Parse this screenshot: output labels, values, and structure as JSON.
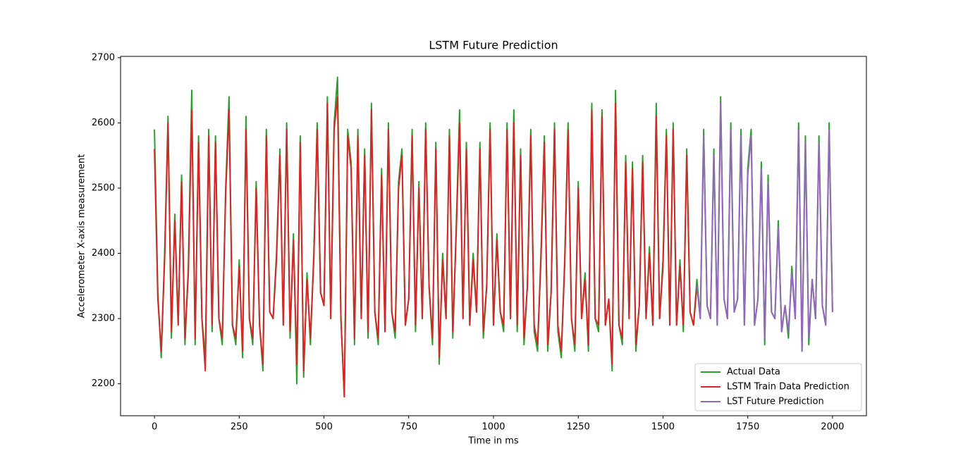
{
  "chart_data": {
    "type": "line",
    "title": "LSTM Future Prediction",
    "x_label": "Time in ms",
    "y_label": "Accelerometer X-axis measurement",
    "xlim": [
      -100,
      2100
    ],
    "ylim": [
      2151,
      2702
    ],
    "xticks": [
      0,
      250,
      500,
      750,
      1000,
      1250,
      1500,
      1750,
      2000
    ],
    "yticks": [
      2200,
      2300,
      2400,
      2500,
      2600,
      2700
    ],
    "legend": "lower right",
    "grid": false,
    "x": [
      0,
      10,
      20,
      30,
      40,
      50,
      60,
      70,
      80,
      90,
      100,
      110,
      120,
      130,
      140,
      150,
      160,
      170,
      180,
      190,
      200,
      210,
      220,
      230,
      240,
      250,
      260,
      270,
      280,
      290,
      300,
      310,
      320,
      330,
      340,
      350,
      360,
      370,
      380,
      390,
      400,
      410,
      420,
      430,
      440,
      450,
      460,
      470,
      480,
      490,
      500,
      510,
      520,
      530,
      540,
      550,
      560,
      570,
      580,
      590,
      600,
      610,
      620,
      630,
      640,
      650,
      660,
      670,
      680,
      690,
      700,
      710,
      720,
      730,
      740,
      750,
      760,
      770,
      780,
      790,
      800,
      810,
      820,
      830,
      840,
      850,
      860,
      870,
      880,
      890,
      900,
      910,
      920,
      930,
      940,
      950,
      960,
      970,
      980,
      990,
      1000,
      1010,
      1020,
      1030,
      1040,
      1050,
      1060,
      1070,
      1080,
      1090,
      1100,
      1110,
      1120,
      1130,
      1140,
      1150,
      1160,
      1170,
      1180,
      1190,
      1200,
      1210,
      1220,
      1230,
      1240,
      1250,
      1260,
      1270,
      1280,
      1290,
      1300,
      1310,
      1320,
      1330,
      1340,
      1350,
      1360,
      1370,
      1380,
      1390,
      1400,
      1410,
      1420,
      1430,
      1440,
      1450,
      1460,
      1470,
      1480,
      1490,
      1500,
      1510,
      1520,
      1530,
      1540,
      1550,
      1560,
      1570,
      1580,
      1590,
      1600,
      1610,
      1620,
      1630,
      1640,
      1650,
      1660,
      1670,
      1680,
      1690,
      1700,
      1710,
      1720,
      1730,
      1740,
      1750,
      1760,
      1770,
      1780,
      1790,
      1800,
      1810,
      1820,
      1830,
      1840,
      1850,
      1860,
      1870,
      1880,
      1890,
      1900,
      1910,
      1920,
      1930,
      1940,
      1950,
      1960,
      1970,
      1980,
      1990,
      2000
    ],
    "series": [
      {
        "name": "Actual Data",
        "color": "#2ca02c",
        "values": [
          2590,
          2340,
          2240,
          2400,
          2610,
          2270,
          2460,
          2290,
          2520,
          2260,
          2380,
          2650,
          2260,
          2580,
          2300,
          2240,
          2590,
          2280,
          2580,
          2300,
          2260,
          2500,
          2640,
          2290,
          2260,
          2390,
          2240,
          2610,
          2300,
          2260,
          2510,
          2290,
          2220,
          2590,
          2310,
          2300,
          2400,
          2560,
          2290,
          2600,
          2270,
          2430,
          2200,
          2580,
          2210,
          2370,
          2260,
          2400,
          2600,
          2340,
          2320,
          2640,
          2300,
          2600,
          2670,
          2300,
          2180,
          2590,
          2540,
          2260,
          2590,
          2300,
          2560,
          2270,
          2630,
          2310,
          2260,
          2530,
          2280,
          2600,
          2310,
          2270,
          2510,
          2560,
          2290,
          2330,
          2590,
          2280,
          2510,
          2300,
          2600,
          2350,
          2260,
          2570,
          2230,
          2400,
          2300,
          2590,
          2270,
          2440,
          2620,
          2300,
          2570,
          2290,
          2400,
          2310,
          2570,
          2270,
          2350,
          2600,
          2290,
          2430,
          2310,
          2280,
          2600,
          2300,
          2620,
          2280,
          2560,
          2260,
          2350,
          2590,
          2280,
          2250,
          2400,
          2580,
          2250,
          2340,
          2600,
          2280,
          2240,
          2390,
          2600,
          2300,
          2250,
          2510,
          2300,
          2370,
          2250,
          2630,
          2300,
          2280,
          2620,
          2290,
          2330,
          2220,
          2650,
          2290,
          2260,
          2550,
          2300,
          2540,
          2250,
          2320,
          2550,
          2300,
          2410,
          2290,
          2630,
          2300,
          2390,
          2590,
          2290,
          2600,
          2290,
          2390,
          2280,
          2560,
          2310,
          2290,
          2360,
          2300,
          2590,
          2320,
          2300,
          2560,
          2290,
          2640,
          2330,
          2300,
          2600,
          2310,
          2330,
          2590,
          2290,
          2530,
          2590,
          2290,
          2330,
          2540,
          2260,
          2520,
          2310,
          2300,
          2450,
          2280,
          2320,
          2270,
          2380,
          2300,
          2600,
          2250,
          2580,
          2260,
          2360,
          2300,
          2580,
          2320,
          2290,
          2600,
          2310
        ]
      },
      {
        "name": "LSTM Train Data Prediction",
        "color": "#d62728",
        "values": [
          2560,
          2330,
          2250,
          2390,
          2600,
          2280,
          2450,
          2290,
          2510,
          2270,
          2370,
          2620,
          2270,
          2570,
          2300,
          2220,
          2580,
          2290,
          2570,
          2300,
          2270,
          2490,
          2620,
          2290,
          2270,
          2380,
          2250,
          2590,
          2300,
          2270,
          2500,
          2290,
          2230,
          2580,
          2310,
          2300,
          2390,
          2550,
          2290,
          2590,
          2280,
          2420,
          2230,
          2570,
          2220,
          2360,
          2270,
          2390,
          2590,
          2340,
          2320,
          2630,
          2300,
          2590,
          2640,
          2300,
          2180,
          2580,
          2530,
          2270,
          2580,
          2300,
          2550,
          2280,
          2620,
          2310,
          2270,
          2520,
          2280,
          2590,
          2310,
          2280,
          2500,
          2550,
          2290,
          2330,
          2580,
          2290,
          2500,
          2300,
          2590,
          2350,
          2270,
          2560,
          2240,
          2390,
          2300,
          2580,
          2280,
          2430,
          2600,
          2300,
          2560,
          2290,
          2390,
          2310,
          2560,
          2280,
          2350,
          2590,
          2290,
          2420,
          2310,
          2290,
          2590,
          2300,
          2600,
          2290,
          2550,
          2270,
          2350,
          2580,
          2290,
          2260,
          2390,
          2570,
          2260,
          2340,
          2590,
          2290,
          2250,
          2380,
          2590,
          2300,
          2260,
          2500,
          2300,
          2360,
          2260,
          2620,
          2300,
          2290,
          2610,
          2290,
          2330,
          2230,
          2630,
          2290,
          2270,
          2540,
          2300,
          2530,
          2260,
          2320,
          2540,
          2300,
          2400,
          2290,
          2610,
          2300,
          2380,
          2580,
          2290,
          2590,
          2290,
          2380,
          2290,
          2550,
          2310,
          2290,
          2350,
          null,
          null,
          null,
          null,
          null,
          null,
          null,
          null,
          null,
          null,
          null,
          null,
          null,
          null,
          null,
          null,
          null,
          null,
          null,
          null,
          null,
          null,
          null,
          null,
          null,
          null,
          null,
          null,
          null,
          null,
          null,
          null,
          null,
          null,
          null,
          null,
          null,
          null,
          null,
          null
        ]
      },
      {
        "name": "LST Future Prediction",
        "color": "#9467bd",
        "values": [
          null,
          null,
          null,
          null,
          null,
          null,
          null,
          null,
          null,
          null,
          null,
          null,
          null,
          null,
          null,
          null,
          null,
          null,
          null,
          null,
          null,
          null,
          null,
          null,
          null,
          null,
          null,
          null,
          null,
          null,
          null,
          null,
          null,
          null,
          null,
          null,
          null,
          null,
          null,
          null,
          null,
          null,
          null,
          null,
          null,
          null,
          null,
          null,
          null,
          null,
          null,
          null,
          null,
          null,
          null,
          null,
          null,
          null,
          null,
          null,
          null,
          null,
          null,
          null,
          null,
          null,
          null,
          null,
          null,
          null,
          null,
          null,
          null,
          null,
          null,
          null,
          null,
          null,
          null,
          null,
          null,
          null,
          null,
          null,
          null,
          null,
          null,
          null,
          null,
          null,
          null,
          null,
          null,
          null,
          null,
          null,
          null,
          null,
          null,
          null,
          null,
          null,
          null,
          null,
          null,
          null,
          null,
          null,
          null,
          null,
          null,
          null,
          null,
          null,
          null,
          null,
          null,
          null,
          null,
          null,
          null,
          null,
          null,
          null,
          null,
          null,
          null,
          null,
          null,
          null,
          null,
          null,
          null,
          null,
          null,
          null,
          null,
          null,
          null,
          null,
          null,
          null,
          null,
          null,
          null,
          null,
          null,
          null,
          null,
          null,
          null,
          null,
          null,
          null,
          null,
          null,
          null,
          null,
          null,
          null,
          2350,
          2300,
          2580,
          2320,
          2300,
          2550,
          2290,
          2630,
          2330,
          2300,
          2590,
          2310,
          2330,
          2580,
          2290,
          2520,
          2580,
          2290,
          2330,
          2530,
          2270,
          2510,
          2310,
          2300,
          2440,
          2280,
          2320,
          2280,
          2370,
          2300,
          2590,
          2250,
          2570,
          2270,
          2360,
          2300,
          2570,
          2320,
          2290,
          2590,
          2310
        ]
      }
    ]
  }
}
